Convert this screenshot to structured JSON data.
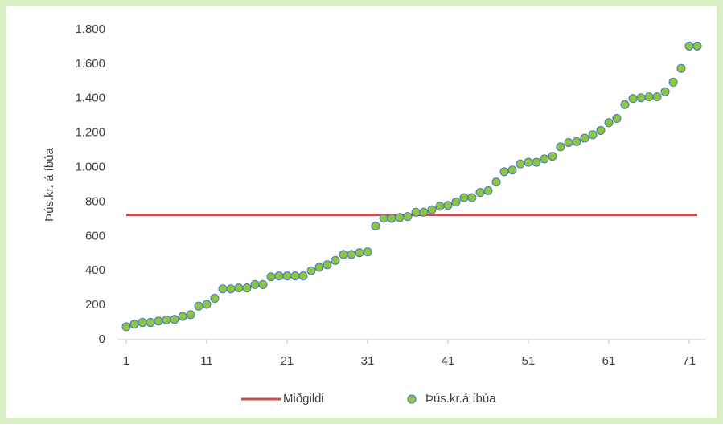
{
  "chart_data": {
    "type": "scatter",
    "ylabel": "Þús.kr. á íbúa",
    "xlim": [
      0,
      73
    ],
    "xticks": [
      1,
      11,
      21,
      31,
      41,
      51,
      61,
      71
    ],
    "ylim": [
      0,
      1800
    ],
    "yticks": [
      0,
      200,
      400,
      600,
      800,
      {
        "value": 1000,
        "label": "1.000"
      },
      {
        "value": 1200,
        "label": "1.200"
      },
      {
        "value": 1400,
        "label": "1.400"
      },
      {
        "value": 1600,
        "label": "1.600"
      },
      {
        "value": 1800,
        "label": "1.800"
      }
    ],
    "grid": false,
    "legend": "bottom",
    "series": [
      {
        "name": "Miðgildi",
        "type": "line",
        "color": "#c0504d",
        "x": [
          1,
          72
        ],
        "values": [
          725,
          725
        ]
      },
      {
        "name": "Þús.kr.á íbúa",
        "type": "scatter",
        "color": "#8dc63f",
        "edgecolor": "#4472c4",
        "x": [
          1,
          2,
          3,
          4,
          5,
          6,
          7,
          8,
          9,
          10,
          11,
          12,
          13,
          14,
          15,
          16,
          17,
          18,
          19,
          20,
          21,
          22,
          23,
          24,
          25,
          26,
          27,
          28,
          29,
          30,
          31,
          32,
          33,
          34,
          35,
          36,
          37,
          38,
          39,
          40,
          41,
          42,
          43,
          44,
          45,
          46,
          47,
          48,
          49,
          50,
          51,
          52,
          53,
          54,
          55,
          56,
          57,
          58,
          59,
          60,
          61,
          62,
          63,
          64,
          65,
          66,
          67,
          68,
          69,
          70,
          71,
          72
        ],
        "values": [
          75,
          90,
          100,
          100,
          108,
          115,
          118,
          135,
          145,
          195,
          205,
          240,
          295,
          295,
          300,
          300,
          320,
          320,
          365,
          370,
          370,
          370,
          370,
          400,
          420,
          435,
          460,
          495,
          495,
          505,
          510,
          660,
          705,
          705,
          710,
          715,
          740,
          740,
          755,
          775,
          780,
          800,
          825,
          825,
          855,
          865,
          915,
          975,
          985,
          1020,
          1030,
          1030,
          1050,
          1065,
          1120,
          1145,
          1150,
          1170,
          1190,
          1215,
          1260,
          1285,
          1365,
          1400,
          1405,
          1410,
          1410,
          1440,
          1495,
          1575,
          1705,
          1705
        ]
      }
    ]
  }
}
